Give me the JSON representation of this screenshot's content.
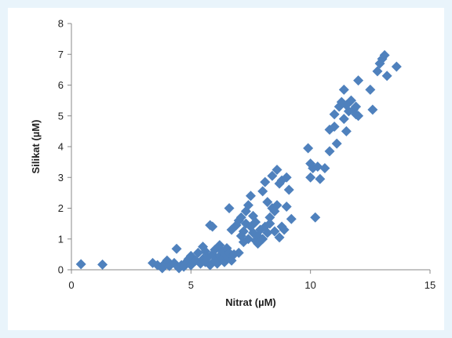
{
  "chart_data": {
    "type": "scatter",
    "title": "",
    "xlabel": "Nitrat (µM)",
    "ylabel": "Silikat (µM)",
    "xlim": [
      0,
      15
    ],
    "ylim": [
      0,
      8
    ],
    "xticks": [
      "0",
      "5",
      "10",
      "15"
    ],
    "yticks": [
      "0",
      "1",
      "2",
      "3",
      "4",
      "5",
      "6",
      "7",
      "8"
    ],
    "grid": false,
    "legend": "none",
    "marker": "diamond",
    "marker_color": "#4f81bd",
    "points": [
      [
        0.4,
        0.18
      ],
      [
        1.3,
        0.17
      ],
      [
        3.4,
        0.22
      ],
      [
        3.6,
        0.15
      ],
      [
        3.8,
        0.05
      ],
      [
        3.9,
        0.2
      ],
      [
        4.0,
        0.3
      ],
      [
        4.1,
        0.12
      ],
      [
        4.3,
        0.22
      ],
      [
        4.4,
        0.68
      ],
      [
        4.5,
        0.05
      ],
      [
        4.6,
        0.15
      ],
      [
        4.7,
        0.1
      ],
      [
        4.8,
        0.25
      ],
      [
        4.9,
        0.35
      ],
      [
        5.0,
        0.45
      ],
      [
        5.0,
        0.15
      ],
      [
        5.1,
        0.25
      ],
      [
        5.2,
        0.3
      ],
      [
        5.3,
        0.55
      ],
      [
        5.4,
        0.2
      ],
      [
        5.5,
        0.35
      ],
      [
        5.5,
        0.75
      ],
      [
        5.6,
        0.6
      ],
      [
        5.6,
        0.25
      ],
      [
        5.7,
        0.4
      ],
      [
        5.8,
        0.15
      ],
      [
        5.8,
        1.45
      ],
      [
        5.9,
        1.4
      ],
      [
        5.9,
        0.5
      ],
      [
        6.0,
        0.3
      ],
      [
        6.0,
        0.65
      ],
      [
        6.1,
        0.2
      ],
      [
        6.2,
        0.45
      ],
      [
        6.2,
        0.8
      ],
      [
        6.3,
        0.35
      ],
      [
        6.3,
        0.6
      ],
      [
        6.4,
        0.25
      ],
      [
        6.5,
        0.7
      ],
      [
        6.5,
        0.45
      ],
      [
        6.6,
        0.55
      ],
      [
        6.6,
        2.0
      ],
      [
        6.7,
        0.3
      ],
      [
        6.7,
        1.3
      ],
      [
        6.8,
        0.5
      ],
      [
        6.9,
        1.45
      ],
      [
        7.0,
        1.6
      ],
      [
        7.0,
        0.55
      ],
      [
        7.1,
        1.7
      ],
      [
        7.1,
        1.1
      ],
      [
        7.2,
        0.9
      ],
      [
        7.2,
        1.25
      ],
      [
        7.3,
        1.9
      ],
      [
        7.3,
        1.5
      ],
      [
        7.4,
        2.1
      ],
      [
        7.4,
        1.0
      ],
      [
        7.5,
        1.4
      ],
      [
        7.5,
        2.4
      ],
      [
        7.6,
        1.2
      ],
      [
        7.6,
        1.75
      ],
      [
        7.7,
        0.95
      ],
      [
        7.7,
        1.55
      ],
      [
        7.8,
        1.1
      ],
      [
        7.8,
        0.85
      ],
      [
        7.9,
        1.3
      ],
      [
        8.0,
        2.55
      ],
      [
        8.0,
        1.0
      ],
      [
        8.1,
        2.85
      ],
      [
        8.1,
        1.4
      ],
      [
        8.2,
        1.2
      ],
      [
        8.2,
        2.2
      ],
      [
        8.3,
        1.7
      ],
      [
        8.3,
        1.5
      ],
      [
        8.4,
        2.0
      ],
      [
        8.4,
        3.05
      ],
      [
        8.5,
        1.9
      ],
      [
        8.5,
        1.25
      ],
      [
        8.6,
        3.25
      ],
      [
        8.6,
        2.1
      ],
      [
        8.7,
        2.8
      ],
      [
        8.7,
        1.05
      ],
      [
        8.8,
        2.9
      ],
      [
        8.8,
        1.4
      ],
      [
        8.9,
        1.3
      ],
      [
        9.0,
        2.05
      ],
      [
        9.0,
        3.0
      ],
      [
        9.1,
        2.6
      ],
      [
        9.2,
        1.65
      ],
      [
        9.9,
        3.95
      ],
      [
        10.0,
        3.0
      ],
      [
        10.0,
        3.45
      ],
      [
        10.1,
        3.3
      ],
      [
        10.2,
        1.7
      ],
      [
        10.3,
        3.35
      ],
      [
        10.4,
        2.95
      ],
      [
        10.6,
        3.3
      ],
      [
        10.8,
        4.55
      ],
      [
        10.8,
        3.85
      ],
      [
        11.0,
        4.65
      ],
      [
        11.0,
        5.05
      ],
      [
        11.1,
        4.1
      ],
      [
        11.2,
        5.3
      ],
      [
        11.3,
        5.45
      ],
      [
        11.4,
        5.85
      ],
      [
        11.4,
        4.9
      ],
      [
        11.5,
        4.5
      ],
      [
        11.5,
        5.35
      ],
      [
        11.6,
        5.15
      ],
      [
        11.7,
        5.5
      ],
      [
        11.8,
        5.2
      ],
      [
        11.9,
        5.05
      ],
      [
        11.9,
        5.3
      ],
      [
        12.0,
        6.15
      ],
      [
        12.0,
        5.0
      ],
      [
        12.5,
        5.85
      ],
      [
        12.6,
        5.2
      ],
      [
        12.8,
        6.45
      ],
      [
        12.9,
        6.7
      ],
      [
        13.0,
        6.85
      ],
      [
        13.1,
        6.97
      ],
      [
        13.2,
        6.3
      ],
      [
        13.6,
        6.6
      ]
    ]
  }
}
